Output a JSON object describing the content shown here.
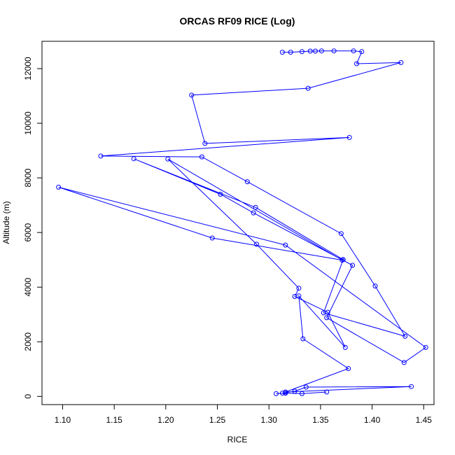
{
  "chart_data": {
    "type": "line",
    "title": "ORCAS RF09 RICE (Log)",
    "xlabel": "RICE",
    "ylabel": "Altitude (m)",
    "xlim": [
      1.08,
      1.46
    ],
    "ylim": [
      -300,
      13000
    ],
    "x_ticks": [
      1.1,
      1.15,
      1.2,
      1.25,
      1.3,
      1.35,
      1.4,
      1.45
    ],
    "x_tick_labels": [
      "1.10",
      "1.15",
      "1.20",
      "1.25",
      "1.30",
      "1.35",
      "1.40",
      "1.45"
    ],
    "y_ticks": [
      0,
      2000,
      4000,
      6000,
      8000,
      10000,
      12000
    ],
    "y_tick_labels": [
      "0",
      "2000",
      "4000",
      "6000",
      "8000",
      "10000",
      "12000"
    ],
    "grid": false,
    "legend": "none",
    "marker": "open-circle",
    "colors": {
      "series": "#0000ff",
      "axes": "#000000",
      "background": "#ffffff"
    },
    "series": [
      {
        "x": [
          1.313,
          1.321,
          1.332,
          1.34,
          1.345,
          1.351,
          1.363,
          1.382,
          1.39,
          1.385,
          1.428,
          1.338,
          1.225,
          1.238,
          1.378,
          1.137,
          1.235,
          1.279,
          1.37,
          1.403,
          1.432,
          1.353,
          1.372,
          1.287,
          1.169,
          1.253,
          1.285,
          1.381,
          1.356,
          1.431,
          1.452,
          1.316,
          1.096,
          1.245,
          1.371,
          1.202,
          1.288,
          1.329,
          1.325,
          1.357,
          1.374,
          1.329,
          1.333,
          1.377,
          1.316,
          1.438,
          1.336,
          1.325,
          1.313,
          1.316,
          1.307,
          1.316,
          1.332,
          1.356
        ],
        "y": [
          12600,
          12600,
          12620,
          12640,
          12640,
          12650,
          12650,
          12650,
          12620,
          12180,
          12220,
          11280,
          11030,
          9260,
          9480,
          8800,
          8770,
          7860,
          5960,
          4040,
          2200,
          3060,
          5010,
          6920,
          8700,
          7400,
          6720,
          4800,
          2880,
          1240,
          1790,
          5540,
          7660,
          5800,
          4990,
          8690,
          5570,
          3960,
          3660,
          3080,
          1790,
          3680,
          2110,
          1020,
          160,
          360,
          340,
          190,
          120,
          120,
          100,
          120,
          100,
          160
        ]
      }
    ]
  }
}
